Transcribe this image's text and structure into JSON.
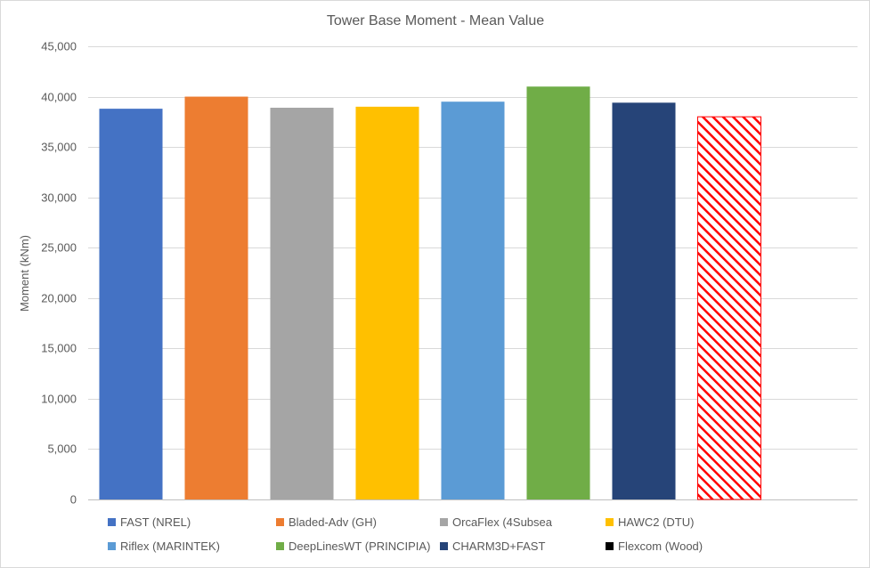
{
  "chart_data": {
    "type": "bar",
    "title": "Tower Base Moment - Mean Value",
    "xlabel": "",
    "ylabel": "Moment (kNm)",
    "ylim": [
      0,
      45000
    ],
    "yticks": [
      0,
      5000,
      10000,
      15000,
      20000,
      25000,
      30000,
      35000,
      40000,
      45000
    ],
    "ytick_labels": [
      "0",
      "5,000",
      "10,000",
      "15,000",
      "20,000",
      "25,000",
      "30,000",
      "35,000",
      "40,000",
      "45,000"
    ],
    "grid": true,
    "legend_position": "bottom",
    "series": [
      {
        "name": "FAST (NREL)",
        "value": 38800,
        "color": "#4472C4",
        "pattern": "solid"
      },
      {
        "name": "Bladed-Adv (GH)",
        "value": 40000,
        "color": "#ED7D31",
        "pattern": "solid"
      },
      {
        "name": "OrcaFlex (4Subsea",
        "value": 38900,
        "color": "#A5A5A5",
        "pattern": "solid"
      },
      {
        "name": "HAWC2 (DTU)",
        "value": 39000,
        "color": "#FFC000",
        "pattern": "solid"
      },
      {
        "name": "Riflex (MARINTEK)",
        "value": 39500,
        "color": "#5B9BD5",
        "pattern": "solid"
      },
      {
        "name": "DeepLinesWT (PRINCIPIA)",
        "value": 41000,
        "color": "#70AD47",
        "pattern": "solid"
      },
      {
        "name": "CHARM3D+FAST",
        "value": 39400,
        "color": "#264478",
        "pattern": "solid"
      },
      {
        "name": "",
        "value": 38000,
        "color": "#FF0000",
        "pattern": "hatch"
      },
      {
        "name": "Flexcom (Wood)",
        "value": null,
        "color": "#000000",
        "pattern": "solid"
      }
    ]
  }
}
